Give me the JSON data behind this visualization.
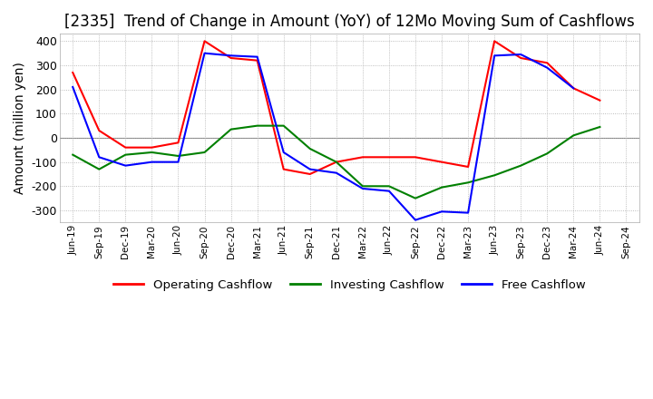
{
  "title": "[2335]  Trend of Change in Amount (YoY) of 12Mo Moving Sum of Cashflows",
  "ylabel": "Amount (million yen)",
  "ylim": [
    -350,
    430
  ],
  "yticks": [
    -300,
    -200,
    -100,
    0,
    100,
    200,
    300,
    400
  ],
  "x_labels": [
    "Jun-19",
    "Sep-19",
    "Dec-19",
    "Mar-20",
    "Jun-20",
    "Sep-20",
    "Dec-20",
    "Mar-21",
    "Jun-21",
    "Sep-21",
    "Dec-21",
    "Mar-22",
    "Jun-22",
    "Sep-22",
    "Dec-22",
    "Mar-23",
    "Jun-23",
    "Sep-23",
    "Dec-23",
    "Mar-24",
    "Jun-24",
    "Sep-24"
  ],
  "operating": [
    270,
    30,
    -40,
    -40,
    -20,
    400,
    330,
    320,
    -130,
    -150,
    -100,
    -80,
    -80,
    -80,
    -100,
    -120,
    400,
    330,
    310,
    205,
    155,
    null
  ],
  "investing": [
    -70,
    -130,
    -70,
    -60,
    -75,
    -60,
    35,
    50,
    50,
    -45,
    -100,
    -200,
    -200,
    -250,
    -205,
    -185,
    -155,
    -115,
    -65,
    10,
    45,
    null
  ],
  "free": [
    210,
    -80,
    -115,
    -100,
    -100,
    350,
    340,
    335,
    -60,
    -130,
    -145,
    -210,
    -220,
    -340,
    -305,
    -310,
    340,
    345,
    290,
    205,
    null,
    null
  ],
  "operating_color": "#ff0000",
  "investing_color": "#008000",
  "free_color": "#0000ff",
  "background_color": "#ffffff",
  "grid_color": "#aaaaaa",
  "title_fontsize": 12,
  "label_fontsize": 10
}
